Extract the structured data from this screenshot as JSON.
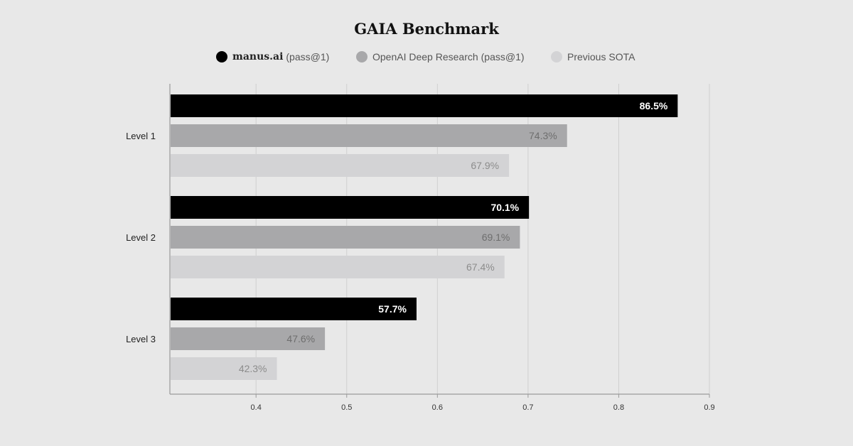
{
  "colors": {
    "background": "#e8e8e8",
    "gridline": "#cfcfcf",
    "axis": "#9a9a9a"
  },
  "chart_data": {
    "type": "bar",
    "orientation": "horizontal",
    "title": "GAIA Benchmark",
    "categories": [
      "Level 1",
      "Level 2",
      "Level 3"
    ],
    "series": [
      {
        "name": "manus.ai",
        "name_suffix": "(pass@1)",
        "color": "#000000",
        "label_color": "#ffffff",
        "values": [
          0.865,
          0.701,
          0.577
        ],
        "labels": [
          "86.5%",
          "70.1%",
          "57.7%"
        ]
      },
      {
        "name": "OpenAI Deep Research",
        "name_suffix": "(pass@1)",
        "color": "#a8a8aa",
        "label_color": "#6e6e6e",
        "values": [
          0.743,
          0.691,
          0.476
        ],
        "labels": [
          "74.3%",
          "69.1%",
          "47.6%"
        ]
      },
      {
        "name": "Previous SOTA",
        "name_suffix": "",
        "color": "#d3d3d5",
        "label_color": "#8c8c8c",
        "values": [
          0.679,
          0.674,
          0.423
        ],
        "labels": [
          "67.9%",
          "67.4%",
          "42.3%"
        ]
      }
    ],
    "xlim": [
      0.305,
      0.9
    ],
    "xticks": [
      0.4,
      0.5,
      0.6,
      0.7,
      0.8,
      0.9
    ],
    "xtick_labels": [
      "0.4",
      "0.5",
      "0.6",
      "0.7",
      "0.8",
      "0.9"
    ],
    "grid": true,
    "legend_position": "top-center",
    "xlabel": "",
    "ylabel": ""
  }
}
